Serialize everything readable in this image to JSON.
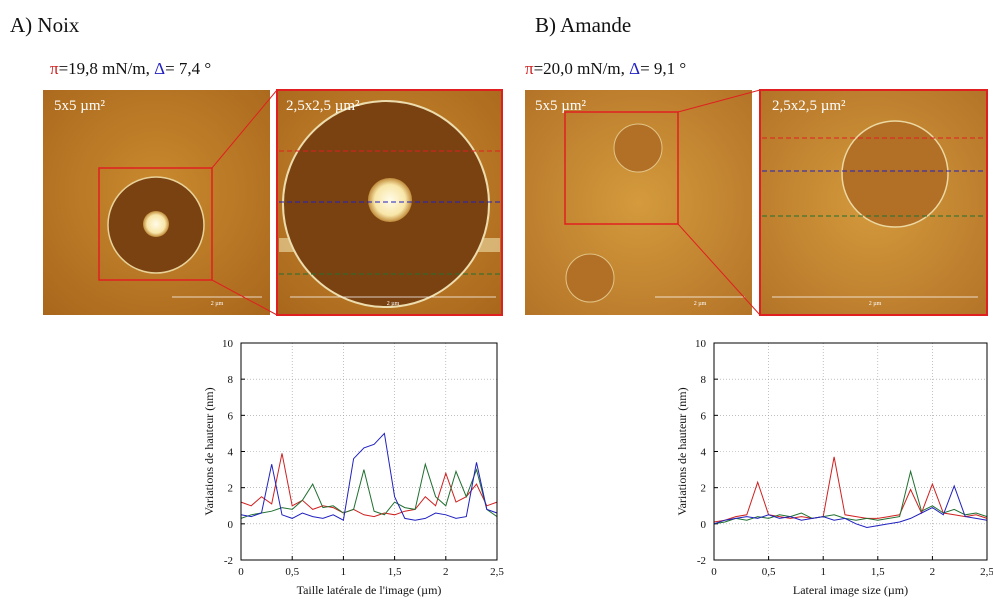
{
  "panels": [
    {
      "title": "A) Noix",
      "condition": {
        "pi": "π",
        "pi_value": "=19,8 mN/m, ",
        "delta": "Δ",
        "delta_value": "= 7,4 °"
      },
      "images": [
        {
          "label": "5x5 µm²",
          "scale": "2 µm"
        },
        {
          "label": "2,5x2,5 µm²",
          "scale": "2 µm"
        }
      ]
    },
    {
      "title": "B) Amande",
      "condition": {
        "pi": "π",
        "pi_value": "=20,0 mN/m, ",
        "delta": "Δ",
        "delta_value": "= 9,1 °"
      },
      "images": [
        {
          "label": "5x5 µm²",
          "scale": "2 µm"
        },
        {
          "label": "2,5x2,5 µm²",
          "scale": "2 µm"
        }
      ]
    }
  ],
  "chart_data": [
    {
      "type": "line",
      "xlabel": "Taille latérale de l'image (µm)",
      "ylabel": "Variations de hauteur (nm)",
      "x": [
        0,
        0.1,
        0.2,
        0.3,
        0.4,
        0.5,
        0.6,
        0.7,
        0.8,
        0.9,
        1.0,
        1.1,
        1.2,
        1.3,
        1.4,
        1.5,
        1.6,
        1.7,
        1.8,
        1.9,
        2.0,
        2.1,
        2.2,
        2.3,
        2.4,
        2.5
      ],
      "series": [
        {
          "color": "#d02020",
          "values": [
            1.2,
            1.0,
            1.5,
            1.1,
            3.9,
            1.0,
            1.3,
            0.8,
            1.0,
            0.9,
            0.6,
            0.8,
            0.5,
            0.4,
            0.6,
            0.5,
            0.7,
            0.8,
            1.5,
            1.0,
            2.8,
            1.2,
            1.5,
            2.2,
            1.0,
            1.2
          ]
        },
        {
          "color": "#207030",
          "values": [
            0.3,
            0.5,
            0.6,
            0.7,
            0.9,
            0.8,
            1.3,
            2.2,
            0.9,
            1.0,
            0.6,
            0.8,
            3.0,
            0.7,
            0.5,
            1.2,
            0.9,
            0.8,
            3.3,
            1.5,
            1.0,
            2.9,
            1.5,
            3.0,
            0.8,
            0.4
          ]
        },
        {
          "color": "#2020c0",
          "values": [
            0.5,
            0.4,
            0.6,
            3.3,
            0.5,
            0.3,
            0.6,
            0.4,
            0.3,
            0.5,
            0.2,
            3.6,
            4.2,
            4.4,
            5.0,
            1.5,
            0.3,
            0.2,
            0.3,
            0.6,
            0.5,
            0.3,
            0.4,
            3.4,
            0.8,
            0.6
          ]
        }
      ],
      "xlim": [
        0,
        2.5
      ],
      "ylim": [
        -2,
        10
      ],
      "xticks": [
        0,
        {
          "value": 0.5,
          "label": "0,5"
        },
        1,
        {
          "value": 1.5,
          "label": "1,5"
        },
        2,
        {
          "value": 2.5,
          "label": "2,5"
        }
      ],
      "yticks": [
        -2,
        0,
        2,
        4,
        6,
        8,
        10
      ],
      "grid": true
    },
    {
      "type": "line",
      "xlabel": "Lateral image size (µm)",
      "ylabel": "Variations de hauteur (nm)",
      "x": [
        0,
        0.1,
        0.2,
        0.3,
        0.4,
        0.5,
        0.6,
        0.7,
        0.8,
        0.9,
        1.0,
        1.1,
        1.2,
        1.3,
        1.4,
        1.5,
        1.6,
        1.7,
        1.8,
        1.9,
        2.0,
        2.1,
        2.2,
        2.3,
        2.4,
        2.5
      ],
      "series": [
        {
          "color": "#d02020",
          "values": [
            0.1,
            0.2,
            0.4,
            0.5,
            2.3,
            0.5,
            0.4,
            0.3,
            0.4,
            0.3,
            0.4,
            3.7,
            0.5,
            0.4,
            0.3,
            0.3,
            0.4,
            0.5,
            1.9,
            0.6,
            2.2,
            0.6,
            0.5,
            0.4,
            0.5,
            0.3
          ]
        },
        {
          "color": "#207030",
          "values": [
            0,
            0.1,
            0.3,
            0.2,
            0.4,
            0.3,
            0.5,
            0.4,
            0.6,
            0.3,
            0.4,
            0.5,
            0.3,
            0.2,
            0.3,
            0.2,
            0.3,
            0.4,
            2.9,
            0.7,
            1.0,
            0.6,
            0.8,
            0.5,
            0.6,
            0.4
          ]
        },
        {
          "color": "#2020c0",
          "values": [
            0,
            0.2,
            0.3,
            0.4,
            0.3,
            0.5,
            0.3,
            0.4,
            0.2,
            0.3,
            0.4,
            0.2,
            0.3,
            0.0,
            -0.2,
            -0.1,
            0.0,
            0.1,
            0.3,
            0.6,
            0.9,
            0.5,
            2.1,
            0.4,
            0.3,
            0.2
          ]
        }
      ],
      "xlim": [
        0,
        2.5
      ],
      "ylim": [
        -2,
        10
      ],
      "xticks": [
        0,
        {
          "value": 0.5,
          "label": "0,5"
        },
        1,
        {
          "value": 1.5,
          "label": "1,5"
        },
        2,
        {
          "value": 2.5,
          "label": "2,5"
        }
      ],
      "yticks": [
        -2,
        0,
        2,
        4,
        6,
        8,
        10
      ],
      "grid": true
    }
  ]
}
